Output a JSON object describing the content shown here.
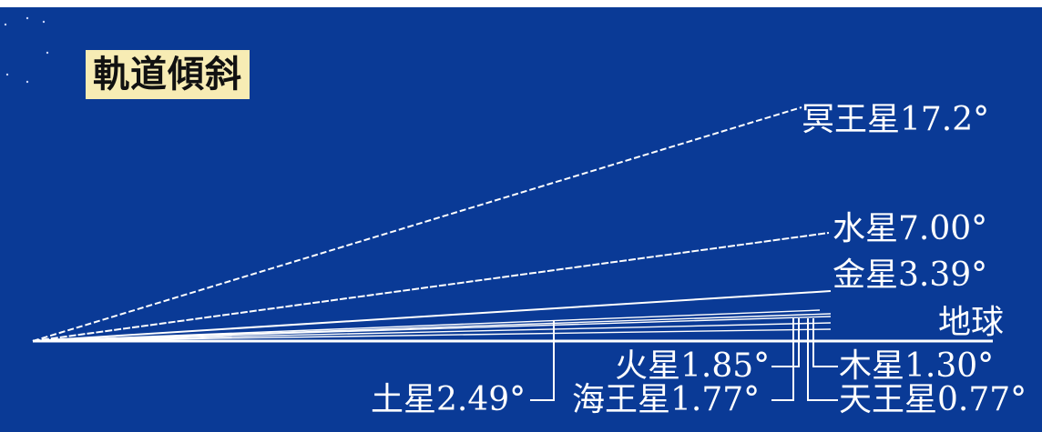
{
  "title": "軌道傾斜",
  "colors": {
    "background": "#0a3a96",
    "title_background": "#f7ecb4",
    "line": "#ffffff"
  },
  "planets": [
    {
      "id": "pluto",
      "label": "冥王星17.2°",
      "inclination_deg": 17.2
    },
    {
      "id": "mercury",
      "label": "水星7.00°",
      "inclination_deg": 7.0
    },
    {
      "id": "venus",
      "label": "金星3.39°",
      "inclination_deg": 3.39
    },
    {
      "id": "earth",
      "label": "地球",
      "inclination_deg": 0
    },
    {
      "id": "saturn",
      "label": "土星2.49°",
      "inclination_deg": 2.49
    },
    {
      "id": "mars",
      "label": "火星1.85°",
      "inclination_deg": 1.85
    },
    {
      "id": "neptune",
      "label": "海王星1.77°",
      "inclination_deg": 1.77
    },
    {
      "id": "jupiter",
      "label": "木星1.30°",
      "inclination_deg": 1.3
    },
    {
      "id": "uranus",
      "label": "天王星0.77°",
      "inclination_deg": 0.77
    }
  ]
}
